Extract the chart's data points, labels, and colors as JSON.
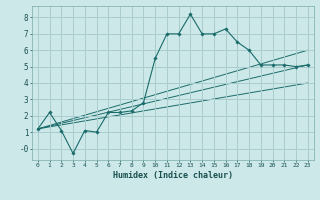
{
  "xlabel": "Humidex (Indice chaleur)",
  "bg_color": "#cce8e8",
  "grid_color": "#aacccc",
  "line_color": "#1a6b6b",
  "xlim": [
    -0.5,
    23.5
  ],
  "ylim": [
    -0.7,
    8.7
  ],
  "xticks": [
    0,
    1,
    2,
    3,
    4,
    5,
    6,
    7,
    8,
    9,
    10,
    11,
    12,
    13,
    14,
    15,
    16,
    17,
    18,
    19,
    20,
    21,
    22,
    23
  ],
  "yticks": [
    0,
    1,
    2,
    3,
    4,
    5,
    6,
    7,
    8
  ],
  "ytick_labels": [
    "-0",
    "1",
    "2",
    "3",
    "4",
    "5",
    "6",
    "7",
    "8"
  ],
  "main_series": {
    "x": [
      0,
      1,
      2,
      3,
      4,
      5,
      6,
      7,
      8,
      9,
      10,
      11,
      12,
      13,
      14,
      15,
      16,
      17,
      18,
      19,
      20,
      21,
      22,
      23
    ],
    "y": [
      1.2,
      2.2,
      1.1,
      -0.3,
      1.1,
      1.0,
      2.2,
      2.2,
      2.3,
      2.8,
      5.5,
      7.0,
      7.0,
      8.2,
      7.0,
      7.0,
      7.3,
      6.5,
      6.0,
      5.1,
      5.1,
      5.1,
      5.0,
      5.1
    ]
  },
  "line_series": [
    {
      "x": [
        0,
        23
      ],
      "y": [
        1.2,
        6.0
      ]
    },
    {
      "x": [
        0,
        23
      ],
      "y": [
        1.2,
        5.1
      ]
    },
    {
      "x": [
        0,
        23
      ],
      "y": [
        1.2,
        4.0
      ]
    }
  ]
}
